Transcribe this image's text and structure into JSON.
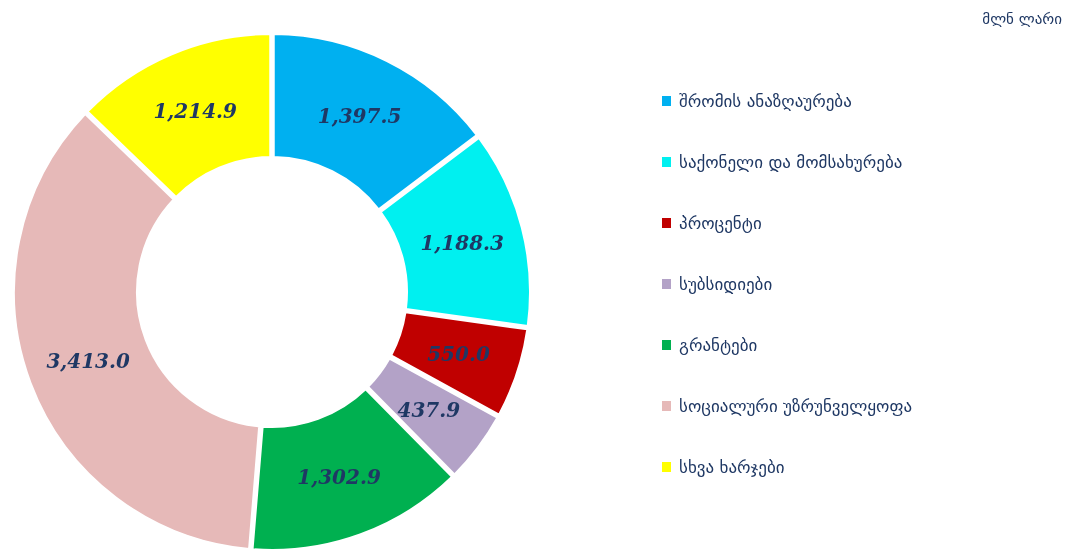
{
  "chart_data": {
    "type": "donut",
    "title": "მლნ ლარი",
    "categories": [
      "შრომის ანაზღაურება",
      "საქონელი და მომსახურება",
      "პროცენტი",
      "სუბსიდიები",
      "გრანტები",
      "სოციალური უზრუნველყოფა",
      "სხვა ხარჯები"
    ],
    "values": [
      1397.5,
      1188.3,
      550.0,
      437.9,
      1302.9,
      3413.0,
      1214.9
    ],
    "colors": [
      "#00b0f0",
      "#00f0f0",
      "#c00000",
      "#b3a2c7",
      "#00b050",
      "#e6b9b8",
      "#ffff00"
    ],
    "value_labels": [
      "1,397.5",
      "1,188.3",
      "550.0",
      "437.9",
      "1,302.9",
      "3,413.0",
      "1,214.9"
    ],
    "legend": "right"
  }
}
